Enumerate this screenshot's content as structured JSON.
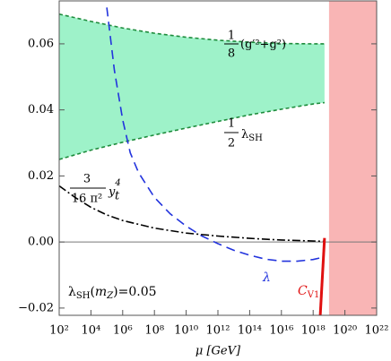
{
  "chart_data": {
    "type": "line",
    "xscale": "log",
    "xlim": [
      100,
      1e+22
    ],
    "ylim": [
      -0.0222,
      0.073
    ],
    "xticks": [
      {
        "value": 100.0,
        "label": "10²"
      },
      {
        "value": 10000.0,
        "label": "10⁴"
      },
      {
        "value": 1000000.0,
        "label": "10⁶"
      },
      {
        "value": 100000000.0,
        "label": "10⁸"
      },
      {
        "value": 10000000000.0,
        "label": "10¹⁰"
      },
      {
        "value": 1000000000000.0,
        "label": "10¹²"
      },
      {
        "value": 100000000000000.0,
        "label": "10¹⁴"
      },
      {
        "value": 1e+16,
        "label": "10¹⁶"
      },
      {
        "value": 1e+18,
        "label": "10¹⁸"
      },
      {
        "value": 1e+20,
        "label": "10²⁰"
      },
      {
        "value": 1e+22,
        "label": "10²²"
      }
    ],
    "yticks": [
      {
        "value": -0.02,
        "label": "−0.02"
      },
      {
        "value": 0,
        "label": "0.00"
      },
      0.02,
      0.04,
      0.06
    ],
    "xlabel": "μ [GeV]",
    "shaded_region": {
      "x": [
        1e+19,
        1e+22
      ],
      "color": "#f9b5b5"
    },
    "reference_line": {
      "value": 0,
      "color": "#777777"
    },
    "series": [
      {
        "color": "#1e8c3c",
        "dash": "4 3",
        "band_fill": "#9ef2c9",
        "x": [
          100.0,
          10000.0,
          1000000.0,
          100000000.0,
          10000000000.0,
          1000000000000.0,
          100000000000000.0,
          1e+16,
          1e+18,
          5.2e+18
        ],
        "values": [
          0.069,
          0.0668,
          0.0648,
          0.0632,
          0.062,
          0.0611,
          0.0605,
          0.0601,
          0.06,
          0.06
        ]
      },
      {
        "color": "#1e8c3c",
        "dash": "4 3",
        "x": [
          100.0,
          10000.0,
          1000000.0,
          100000000.0,
          10000000000.0,
          1000000000000.0,
          100000000000000.0,
          1e+16,
          1e+18,
          5.2e+18
        ],
        "values": [
          0.025,
          0.0278,
          0.0302,
          0.0324,
          0.0345,
          0.0365,
          0.0385,
          0.0402,
          0.0418,
          0.0422
        ]
      },
      {
        "color": "#2233dd",
        "dash": "10 6",
        "x": [
          100000.0,
          300000.0,
          1000000.0,
          3000000.0,
          10000000.0,
          100000000.0,
          1000000000.0,
          10000000000.0,
          100000000000.0,
          1000000000000.0,
          10000000000000.0,
          100000000000000.0,
          1000000000000000.0,
          1e+16,
          1e+17,
          1e+18,
          5.2e+18
        ],
        "values": [
          0.071,
          0.052,
          0.037,
          0.027,
          0.021,
          0.0135,
          0.0085,
          0.0048,
          0.0018,
          -0.0005,
          -0.0025,
          -0.004,
          -0.0052,
          -0.0058,
          -0.0058,
          -0.0053,
          -0.0045
        ]
      },
      {
        "color": "#000000",
        "dash": "9 3 2 3",
        "x": [
          100.0,
          1000.0,
          10000.0,
          100000.0,
          1000000.0,
          100000000.0,
          10000000000.0,
          1000000000000.0,
          100000000000000.0,
          1e+16,
          1e+18,
          5.2e+18
        ],
        "values": [
          0.017,
          0.0135,
          0.0105,
          0.0082,
          0.0065,
          0.0042,
          0.0027,
          0.0018,
          0.0011,
          0.0006,
          0.0003,
          0.0002
        ]
      },
      {
        "color": "#e01010",
        "width": 3,
        "x": [
          2.8e+18,
          5.2e+18
        ],
        "values": [
          -0.0222,
          0.0012
        ]
      }
    ],
    "annotations": {
      "upper": {
        "num": "1",
        "den": "8",
        "expr": "(g′²+g²)"
      },
      "lower": {
        "num": "1",
        "den": "2",
        "expr": "λ",
        "sub": "SH"
      },
      "top_yukawa": {
        "num": "3",
        "den": "16 π²",
        "expr": "y",
        "sub": "t",
        "sup": "4"
      },
      "initial": {
        "a": "λ",
        "a_sub": "SH",
        "b": "(",
        "c": "m",
        "c_sub": "Z",
        "d": ")=0.05"
      },
      "lambda": "λ",
      "cv1": {
        "text": "C",
        "sub": "V1"
      }
    }
  }
}
